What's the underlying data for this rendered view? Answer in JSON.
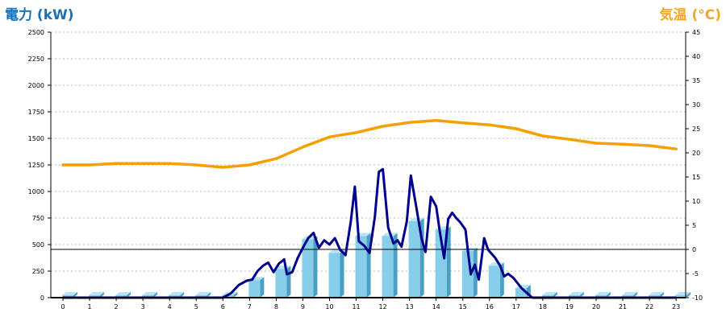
{
  "chart_data": {
    "type": "bar",
    "left_axis_title": "電力 (kW)",
    "right_axis_title": "気温 (°C)",
    "colors": {
      "bar_front": "#87ceeb",
      "bar_side": "#4a9fc4",
      "bar_top": "#b8e4f5",
      "power_line": "#00008b",
      "temperature_line": "#f5a000",
      "grid": "#bbbbbb",
      "axis_title_left": "#1f6fb0",
      "axis_title_right": "#f5a623"
    },
    "grid": "dashed horizontal",
    "categories": [
      "0",
      "1",
      "2",
      "3",
      "4",
      "5",
      "6",
      "7",
      "8",
      "9",
      "10",
      "11",
      "12",
      "13",
      "14",
      "15",
      "16",
      "17",
      "18",
      "19",
      "20",
      "21",
      "22",
      "23"
    ],
    "y_left": {
      "min": 0,
      "max": 2500,
      "ticks": [
        "0",
        "250",
        "500",
        "750",
        "1000",
        "1250",
        "1500",
        "1750",
        "2000",
        "2250",
        "2500"
      ]
    },
    "y_right": {
      "min": -10,
      "max": 45,
      "ticks": [
        "-10",
        "-5",
        "0",
        "5",
        "10",
        "15",
        "20",
        "25",
        "30",
        "35",
        "40",
        "45"
      ]
    },
    "zero_line_temperature": 0,
    "bars": [
      0,
      0,
      0,
      0,
      0,
      0,
      0,
      165,
      270,
      550,
      420,
      580,
      580,
      720,
      640,
      440,
      300,
      90,
      0,
      0,
      0,
      0,
      0,
      0
    ],
    "temperature": [
      17.5,
      17.5,
      17.8,
      17.8,
      17.8,
      17.5,
      17.0,
      17.5,
      18.8,
      21.2,
      23.3,
      24.2,
      25.5,
      26.3,
      26.7,
      26.2,
      25.8,
      25.0,
      23.5,
      22.8,
      22.0,
      21.8,
      21.5,
      20.8
    ],
    "power_series": [
      [
        0,
        0
      ],
      [
        6,
        0
      ],
      [
        6.3,
        40
      ],
      [
        6.6,
        120
      ],
      [
        6.9,
        160
      ],
      [
        7.1,
        170
      ],
      [
        7.3,
        250
      ],
      [
        7.5,
        300
      ],
      [
        7.7,
        330
      ],
      [
        7.9,
        240
      ],
      [
        8.1,
        320
      ],
      [
        8.3,
        360
      ],
      [
        8.4,
        220
      ],
      [
        8.6,
        240
      ],
      [
        8.8,
        370
      ],
      [
        9.0,
        470
      ],
      [
        9.2,
        560
      ],
      [
        9.4,
        610
      ],
      [
        9.6,
        470
      ],
      [
        9.8,
        540
      ],
      [
        10.0,
        500
      ],
      [
        10.2,
        560
      ],
      [
        10.4,
        450
      ],
      [
        10.6,
        400
      ],
      [
        10.8,
        720
      ],
      [
        10.95,
        1045
      ],
      [
        11.1,
        530
      ],
      [
        11.3,
        490
      ],
      [
        11.5,
        420
      ],
      [
        11.7,
        760
      ],
      [
        11.85,
        1185
      ],
      [
        12.0,
        1210
      ],
      [
        12.2,
        660
      ],
      [
        12.4,
        510
      ],
      [
        12.55,
        540
      ],
      [
        12.7,
        480
      ],
      [
        12.9,
        720
      ],
      [
        13.05,
        1150
      ],
      [
        13.25,
        860
      ],
      [
        13.45,
        560
      ],
      [
        13.6,
        430
      ],
      [
        13.8,
        950
      ],
      [
        14.0,
        860
      ],
      [
        14.15,
        600
      ],
      [
        14.3,
        370
      ],
      [
        14.45,
        740
      ],
      [
        14.6,
        800
      ],
      [
        14.75,
        750
      ],
      [
        14.9,
        710
      ],
      [
        15.1,
        640
      ],
      [
        15.2,
        420
      ],
      [
        15.3,
        220
      ],
      [
        15.45,
        310
      ],
      [
        15.6,
        170
      ],
      [
        15.7,
        360
      ],
      [
        15.8,
        560
      ],
      [
        15.95,
        450
      ],
      [
        16.2,
        380
      ],
      [
        16.4,
        300
      ],
      [
        16.55,
        200
      ],
      [
        16.7,
        225
      ],
      [
        16.9,
        185
      ],
      [
        17.2,
        90
      ],
      [
        17.6,
        0
      ],
      [
        23,
        0
      ]
    ]
  }
}
